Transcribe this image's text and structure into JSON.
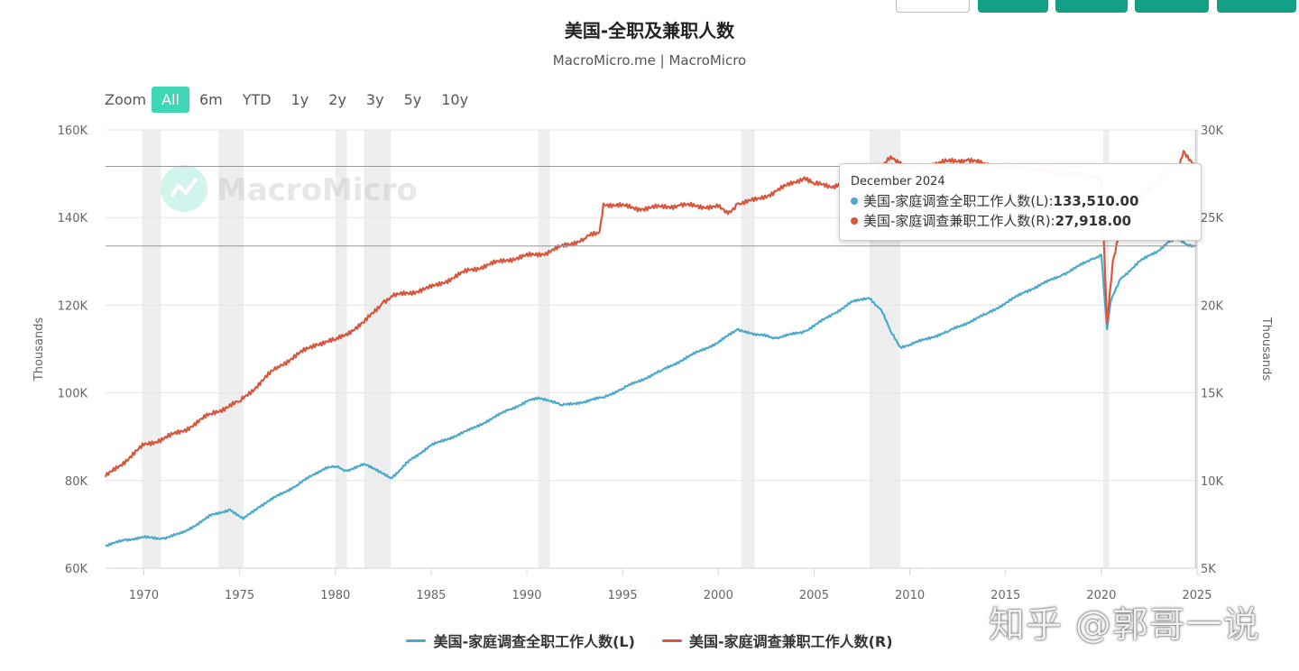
{
  "header": {
    "title": "美国-全职及兼职人数",
    "subtitle": "MacroMicro.me | MacroMicro"
  },
  "zoom": {
    "label": "Zoom",
    "options": [
      "All",
      "6m",
      "YTD",
      "1y",
      "2y",
      "3y",
      "5y",
      "10y"
    ],
    "active": "All"
  },
  "tooltip": {
    "date": "December 2024",
    "rows": [
      {
        "label": "美国-家庭调查全职工作人数(L): ",
        "value": "133,510.00",
        "color": "#4aa9cc"
      },
      {
        "label": "美国-家庭调查兼职工作人数(R): ",
        "value": "27,918.00",
        "color": "#d9553b"
      }
    ]
  },
  "watermark": "知乎 @郭哥一说",
  "chart_data": {
    "type": "line",
    "x_range": [
      1968,
      2025
    ],
    "x_ticks": [
      "1970",
      "1975",
      "1980",
      "1985",
      "1990",
      "1995",
      "2000",
      "2005",
      "2010",
      "2015",
      "2020",
      "2025"
    ],
    "y_left": {
      "label": "Thousands",
      "range": [
        60000,
        160000
      ],
      "ticks": [
        "60K",
        "80K",
        "100K",
        "120K",
        "140K",
        "160K"
      ]
    },
    "y_right": {
      "label": "Thousands",
      "range": [
        5000,
        30000
      ],
      "ticks": [
        "5K",
        "10K",
        "15K",
        "20K",
        "25K",
        "30K"
      ]
    },
    "recessions": [
      [
        1969.9,
        1970.9
      ],
      [
        1973.9,
        1975.2
      ],
      [
        1980.0,
        1980.6
      ],
      [
        1981.5,
        1982.9
      ],
      [
        1990.6,
        1991.2
      ],
      [
        2001.2,
        2001.9
      ],
      [
        2007.9,
        2009.5
      ],
      [
        2020.1,
        2020.4
      ]
    ],
    "grid": true,
    "legend_position": "bottom",
    "series": [
      {
        "name": "美国-家庭调查全职工作人数(L)",
        "axis": "left",
        "color": "#4aa9cc",
        "x": [
          1968.0,
          1969.0,
          1970.0,
          1971.0,
          1972.0,
          1973.5,
          1974.5,
          1975.2,
          1976.0,
          1978.0,
          1979.5,
          1980.0,
          1980.6,
          1981.5,
          1982.9,
          1984.0,
          1985.0,
          1987.0,
          1989.0,
          1990.0,
          1990.6,
          1991.8,
          1993.0,
          1994.0,
          1995.0,
          1997.0,
          1999.0,
          2000.0,
          2001.0,
          2001.9,
          2003.0,
          2004.5,
          2006.0,
          2007.0,
          2007.9,
          2008.5,
          2009.0,
          2009.5,
          2010.0,
          2012.0,
          2014.0,
          2016.0,
          2018.0,
          2019.5,
          2020.0,
          2020.3,
          2020.5,
          2021.0,
          2022.0,
          2023.0,
          2023.5,
          2024.0,
          2024.5,
          2024.92
        ],
        "values": [
          65000,
          66500,
          67000,
          66800,
          68000,
          72000,
          73400,
          71200,
          74000,
          79000,
          83000,
          83200,
          82200,
          83800,
          80500,
          85000,
          88000,
          91500,
          96000,
          98000,
          99000,
          97200,
          98000,
          99000,
          101000,
          105000,
          109500,
          111500,
          114500,
          113500,
          112500,
          114000,
          118000,
          120800,
          121500,
          119000,
          114000,
          110500,
          111000,
          114000,
          118000,
          123000,
          127000,
          130500,
          131500,
          114500,
          121000,
          126000,
          130000,
          132500,
          134500,
          135000,
          133800,
          133510
        ]
      },
      {
        "name": "美国-家庭调查兼职工作人数(R)",
        "axis": "right",
        "color": "#d9553b",
        "x": [
          1968.0,
          1970.0,
          1972.0,
          1973.5,
          1975.0,
          1977.0,
          1979.0,
          1980.0,
          1981.5,
          1982.5,
          1983.0,
          1985.0,
          1987.0,
          1989.0,
          1991.0,
          1993.0,
          1993.8,
          1994.0,
          1996.0,
          1998.0,
          2000.0,
          2000.5,
          2001.0,
          2002.0,
          2003.0,
          2004.5,
          2005.0,
          2006.0,
          2007.0,
          2008.0,
          2009.0,
          2010.0,
          2012.0,
          2013.0,
          2014.0,
          2016.0,
          2018.0,
          2019.5,
          2020.0,
          2020.3,
          2020.6,
          2021.0,
          2022.0,
          2023.0,
          2023.5,
          2024.0,
          2024.3,
          2024.92
        ],
        "values": [
          10200,
          12000,
          12800,
          13800,
          14500,
          16500,
          17800,
          18000,
          19000,
          20200,
          20500,
          21000,
          22000,
          22600,
          23000,
          23800,
          24200,
          25800,
          25500,
          25700,
          25600,
          25200,
          25800,
          26000,
          26500,
          27300,
          26900,
          26800,
          27200,
          27000,
          28500,
          27800,
          28200,
          28300,
          28000,
          27800,
          27500,
          27400,
          27200,
          19000,
          22500,
          24500,
          26000,
          27200,
          27700,
          27800,
          28800,
          27918
        ]
      }
    ]
  }
}
